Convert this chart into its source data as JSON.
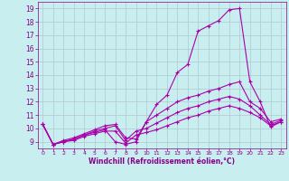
{
  "background_color": "#c8eef0",
  "line_color": "#aa00aa",
  "grid_color": "#b0c8d0",
  "xlabel": "Windchill (Refroidissement éolien,°C)",
  "xlabel_color": "#880088",
  "tick_color": "#880088",
  "ylim": [
    8.5,
    19.5
  ],
  "xlim": [
    -0.5,
    23.5
  ],
  "yticks": [
    9,
    10,
    11,
    12,
    13,
    14,
    15,
    16,
    17,
    18,
    19
  ],
  "xticks": [
    0,
    1,
    2,
    3,
    4,
    5,
    6,
    7,
    8,
    9,
    10,
    11,
    12,
    13,
    14,
    15,
    16,
    17,
    18,
    19,
    20,
    21,
    22,
    23
  ],
  "lines": [
    {
      "x": [
        0,
        1,
        2,
        3,
        4,
        5,
        6,
        7,
        8,
        9,
        10,
        11,
        12,
        13,
        14,
        15,
        16,
        17,
        18,
        19,
        20,
        21,
        22,
        23
      ],
      "y": [
        10.3,
        8.8,
        9.0,
        9.2,
        9.5,
        9.7,
        9.9,
        9.0,
        8.8,
        9.0,
        10.5,
        11.8,
        12.5,
        14.2,
        14.8,
        17.3,
        17.7,
        18.1,
        18.9,
        19.0,
        13.5,
        12.0,
        10.1,
        10.5
      ]
    },
    {
      "x": [
        0,
        1,
        2,
        3,
        4,
        5,
        6,
        7,
        8,
        9,
        10,
        11,
        12,
        13,
        14,
        15,
        16,
        17,
        18,
        19,
        20,
        21,
        22,
        23
      ],
      "y": [
        10.3,
        8.8,
        9.1,
        9.3,
        9.6,
        9.9,
        10.2,
        10.3,
        9.3,
        9.2,
        10.5,
        11.0,
        11.5,
        12.0,
        12.3,
        12.5,
        12.8,
        13.0,
        13.3,
        13.5,
        12.0,
        11.5,
        10.5,
        10.7
      ]
    },
    {
      "x": [
        0,
        1,
        2,
        3,
        4,
        5,
        6,
        7,
        8,
        9,
        10,
        11,
        12,
        13,
        14,
        15,
        16,
        17,
        18,
        19,
        20,
        21,
        22,
        23
      ],
      "y": [
        10.3,
        8.8,
        9.0,
        9.2,
        9.5,
        9.8,
        10.0,
        10.2,
        9.1,
        9.8,
        10.0,
        10.4,
        10.8,
        11.2,
        11.5,
        11.7,
        12.0,
        12.2,
        12.4,
        12.2,
        11.7,
        11.0,
        10.3,
        10.6
      ]
    },
    {
      "x": [
        0,
        1,
        2,
        3,
        4,
        5,
        6,
        7,
        8,
        9,
        10,
        11,
        12,
        13,
        14,
        15,
        16,
        17,
        18,
        19,
        20,
        21,
        22,
        23
      ],
      "y": [
        10.3,
        8.8,
        9.0,
        9.1,
        9.4,
        9.6,
        9.8,
        9.8,
        8.9,
        9.5,
        9.7,
        9.9,
        10.2,
        10.5,
        10.8,
        11.0,
        11.3,
        11.5,
        11.7,
        11.5,
        11.2,
        10.8,
        10.2,
        10.5
      ]
    }
  ]
}
